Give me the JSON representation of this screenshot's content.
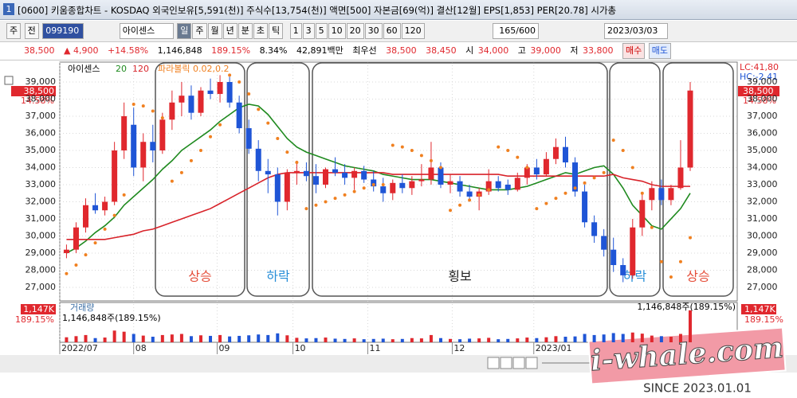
{
  "ui": {
    "title_bar": {
      "icon": "1",
      "text": "[0600] 키움종합차트 - KOSDAQ 외국인보유[5,591(천)] 주식수[13,754(천)] 액면[500] 자본금[69(억)] 결산[12월] EPS[1,853] PER[20.78] 시가총"
    },
    "toolbar": {
      "period": "주",
      "range": "전",
      "code": "099190",
      "name": "아이센스",
      "units": [
        "일",
        "주",
        "월",
        "년",
        "분",
        "초",
        "틱"
      ],
      "intervals": [
        "1",
        "3",
        "5",
        "10",
        "20",
        "30",
        "60",
        "120"
      ],
      "count": "165/600",
      "date": "2023/03/03"
    },
    "quote": {
      "price": "38,500",
      "change": "▲ 4,900",
      "rate": "+14.58%",
      "volume": "1,146,848",
      "volume_rate": "189.15%",
      "turnover": "8.34%",
      "amount": "42,891백만",
      "best_label": "최우선",
      "ask": "38,500",
      "bid": "38,450",
      "open_label": "시",
      "open": "34,000",
      "high_label": "고",
      "high": "39,000",
      "low_label": "저",
      "low": "33,800",
      "buy": "매수",
      "sell": "매도"
    },
    "watermark": {
      "text": "i-whale.com",
      "since": "SINCE 2023.01.01"
    }
  },
  "chart_data": {
    "type": "candlestick",
    "name": "아이센스",
    "up_color": "#e0282e",
    "down_color": "#1f55d6",
    "xlim": [
      -0.7,
      69.9
    ],
    "ylim": [
      26300,
      40070
    ],
    "grid": true,
    "yticks": [
      {
        "value": 27000,
        "label": "27,000"
      },
      {
        "value": 28000,
        "label": "28,000"
      },
      {
        "value": 29000,
        "label": "29,000"
      },
      {
        "value": 30000,
        "label": "30,000"
      },
      {
        "value": 31000,
        "label": "31,000"
      },
      {
        "value": 32000,
        "label": "32,000"
      },
      {
        "value": 33000,
        "label": "33,000"
      },
      {
        "value": 34000,
        "label": "34,000"
      },
      {
        "value": 35000,
        "label": "35,000"
      },
      {
        "value": 36000,
        "label": "36,000"
      },
      {
        "value": 37000,
        "label": "37,000"
      },
      {
        "value": 38000,
        "label": "38,000"
      },
      {
        "value": 39000,
        "label": "39,000"
      }
    ],
    "xticks": [
      {
        "value": -0.7,
        "label": "2022/07"
      },
      {
        "value": 7,
        "label": "08"
      },
      {
        "value": 15.7,
        "label": "09"
      },
      {
        "value": 23.6,
        "label": "10"
      },
      {
        "value": 31.4,
        "label": "11"
      },
      {
        "value": 40.2,
        "label": "12"
      },
      {
        "value": 48.7,
        "label": "2023/01"
      }
    ],
    "candles": [
      [
        29000,
        29500,
        28700,
        29200
      ],
      [
        29200,
        30800,
        29000,
        30500
      ],
      [
        30500,
        32200,
        30200,
        31800
      ],
      [
        31800,
        32500,
        31300,
        31500
      ],
      [
        31500,
        32300,
        31200,
        32000
      ],
      [
        32000,
        35500,
        31800,
        35000
      ],
      [
        35000,
        37800,
        34500,
        37000
      ],
      [
        36500,
        37500,
        33500,
        34000
      ],
      [
        34000,
        36000,
        33200,
        35500
      ],
      [
        35500,
        36500,
        34300,
        35000
      ],
      [
        35000,
        37200,
        34800,
        36800
      ],
      [
        36800,
        38500,
        36200,
        37800
      ],
      [
        37800,
        39000,
        37000,
        38200
      ],
      [
        38200,
        38800,
        36800,
        37200
      ],
      [
        37200,
        38700,
        37000,
        38500
      ],
      [
        38500,
        39200,
        38000,
        38300
      ],
      [
        38300,
        39400,
        37800,
        39000
      ],
      [
        39000,
        39300,
        37500,
        37800
      ],
      [
        37800,
        38200,
        36000,
        36300
      ],
      [
        36300,
        36800,
        34800,
        35100
      ],
      [
        35100,
        35600,
        33200,
        33800
      ],
      [
        33800,
        34500,
        32500,
        33600
      ],
      [
        33600,
        34000,
        31200,
        32000
      ],
      [
        32000,
        33900,
        31500,
        33700
      ],
      [
        33700,
        34400,
        33000,
        33800
      ],
      [
        33800,
        34300,
        33200,
        33500
      ],
      [
        33500,
        34200,
        32500,
        33000
      ],
      [
        33000,
        34000,
        32800,
        33900
      ],
      [
        33900,
        34600,
        33500,
        33700
      ],
      [
        33700,
        34200,
        33000,
        33400
      ],
      [
        33400,
        34000,
        32700,
        33800
      ],
      [
        33800,
        34100,
        33100,
        33300
      ],
      [
        33300,
        33800,
        32600,
        32900
      ],
      [
        32900,
        33400,
        32000,
        32500
      ],
      [
        32500,
        33300,
        32100,
        33100
      ],
      [
        33100,
        33600,
        32500,
        32800
      ],
      [
        32800,
        33500,
        32400,
        33200
      ],
      [
        33200,
        34200,
        32900,
        33300
      ],
      [
        33300,
        35500,
        33000,
        34000
      ],
      [
        34000,
        34300,
        32800,
        33000
      ],
      [
        33000,
        33600,
        32500,
        33200
      ],
      [
        33200,
        33500,
        32300,
        32600
      ],
      [
        32600,
        33000,
        32000,
        32300
      ],
      [
        32300,
        32800,
        31500,
        32600
      ],
      [
        32600,
        33900,
        32400,
        33200
      ],
      [
        33200,
        33500,
        32600,
        32800
      ],
      [
        33000,
        33300,
        32400,
        32700
      ],
      [
        32700,
        33700,
        32600,
        33400
      ],
      [
        33400,
        34200,
        33000,
        34000
      ],
      [
        34000,
        34500,
        33300,
        33600
      ],
      [
        33600,
        34900,
        33500,
        34500
      ],
      [
        34500,
        35700,
        34200,
        35200
      ],
      [
        35200,
        35800,
        34000,
        34300
      ],
      [
        34300,
        34600,
        32300,
        32600
      ],
      [
        32600,
        33000,
        30500,
        30800
      ],
      [
        30800,
        31200,
        29600,
        30000
      ],
      [
        30000,
        30400,
        28800,
        29200
      ],
      [
        29200,
        29900,
        27900,
        28300
      ],
      [
        28300,
        28700,
        27300,
        27700
      ],
      [
        27700,
        31000,
        27500,
        30500
      ],
      [
        30500,
        32500,
        30000,
        32100
      ],
      [
        32100,
        33200,
        31500,
        32800
      ],
      [
        32800,
        33300,
        31800,
        32100
      ],
      [
        32100,
        33000,
        31800,
        32800
      ],
      [
        32800,
        35600,
        32700,
        34000
      ],
      [
        34000,
        39000,
        33800,
        38500
      ]
    ],
    "ma_series": [
      {
        "name": "20",
        "color": "#1f8a1f",
        "values": [
          29000,
          29300,
          29700,
          30200,
          30600,
          31100,
          31800,
          32300,
          32800,
          33300,
          33900,
          34400,
          35000,
          35400,
          35800,
          36200,
          36700,
          37100,
          37500,
          37700,
          37600,
          37100,
          36400,
          35700,
          35200,
          34900,
          34700,
          34500,
          34300,
          34100,
          34000,
          33900,
          33800,
          33600,
          33500,
          33400,
          33300,
          33300,
          33300,
          33200,
          33100,
          33000,
          32900,
          32800,
          32700,
          32700,
          32700,
          32800,
          32900,
          33100,
          33300,
          33500,
          33700,
          33600,
          33800,
          34000,
          34100,
          33600,
          32800,
          31800,
          31200,
          30600,
          30400,
          31000,
          31600,
          32500
        ]
      },
      {
        "name": "120",
        "color": "#d8232a",
        "values": [
          29800,
          29800,
          29800,
          29800,
          29800,
          29900,
          30000,
          30100,
          30300,
          30400,
          30600,
          30800,
          31000,
          31200,
          31400,
          31600,
          31900,
          32200,
          32500,
          32800,
          33100,
          33400,
          33600,
          33700,
          33700,
          33700,
          33700,
          33700,
          33700,
          33700,
          33700,
          33700,
          33700,
          33700,
          33600,
          33600,
          33600,
          33600,
          33600,
          33600,
          33600,
          33600,
          33600,
          33600,
          33600,
          33600,
          33500,
          33500,
          33500,
          33500,
          33500,
          33500,
          33500,
          33500,
          33500,
          33500,
          33500,
          33600,
          33400,
          33300,
          33200,
          33000,
          32900,
          32900,
          32900,
          32900
        ]
      }
    ],
    "sar": {
      "name": "파라볼릭 0.02,0.2",
      "color": "#f08020",
      "values": [
        27800,
        28300,
        28900,
        29600,
        30400,
        31200,
        32400,
        37700,
        37600,
        37300,
        36900,
        33200,
        33700,
        34400,
        35000,
        35800,
        36500,
        39400,
        39000,
        38300,
        37400,
        36600,
        35700,
        34900,
        34300,
        31600,
        31800,
        32000,
        32200,
        32400,
        32600,
        32800,
        33000,
        33000,
        35300,
        35200,
        35000,
        34700,
        34400,
        34000,
        31500,
        31800,
        32100,
        32400,
        32700,
        35200,
        35000,
        34600,
        34000,
        31600,
        31900,
        32200,
        32500,
        32800,
        33100,
        33400,
        33700,
        35600,
        35000,
        34000,
        32500,
        30500,
        28500,
        27600,
        28500,
        29900
      ]
    },
    "lc_label": "LC:41,80",
    "hc_label": "HC:-2,41",
    "last_label": "38,500",
    "last_rate": "14.58%",
    "annotations": [
      {
        "text": "상승",
        "color": "#e5503c"
      },
      {
        "text": "하락",
        "color": "#2a8fd8"
      },
      {
        "text": "횡보",
        "color": "#222222"
      },
      {
        "text": "하락",
        "color": "#2a8fd8"
      },
      {
        "text": "상승",
        "color": "#e5503c"
      }
    ],
    "volume_title": "거래량",
    "volume_note": "1,146,848주(189.15%)",
    "volume_last": "1,147K",
    "volume_rate": "189.15%",
    "volume_ylim": [
      0,
      1200000
    ],
    "volumes": [
      180000,
      220000,
      260000,
      150000,
      170000,
      420000,
      380000,
      300000,
      240000,
      200000,
      260000,
      280000,
      300000,
      220000,
      250000,
      230000,
      260000,
      210000,
      230000,
      250000,
      280000,
      260000,
      320000,
      250000,
      160000,
      140000,
      150000,
      170000,
      130000,
      120000,
      140000,
      110000,
      120000,
      130000,
      110000,
      120000,
      150000,
      140000,
      260000,
      150000,
      120000,
      110000,
      130000,
      140000,
      160000,
      110000,
      120000,
      140000,
      170000,
      150000,
      180000,
      220000,
      200000,
      210000,
      300000,
      260000,
      280000,
      330000,
      300000,
      350000,
      310000,
      240000,
      220000,
      200000,
      300000,
      1146848
    ]
  }
}
